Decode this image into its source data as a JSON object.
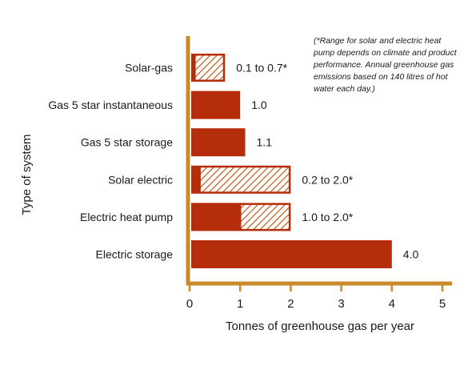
{
  "chart_data": {
    "type": "bar",
    "orientation": "horizontal",
    "xlabel": "Tonnes of greenhouse gas per year",
    "ylabel": "Type of system",
    "xlim": [
      0,
      5
    ],
    "xticks": [
      "0",
      "1",
      "2",
      "3",
      "4",
      "5"
    ],
    "grid": false,
    "categories": [
      "Solar-gas",
      "Gas 5 star instantaneous",
      "Gas 5 star storage",
      "Solar electric",
      "Electric heat pump",
      "Electric storage"
    ],
    "series": [
      {
        "values": [
          0.1,
          1.0,
          1.1,
          0.2,
          1.0,
          4.0
        ]
      },
      {
        "values": [
          0.7,
          null,
          null,
          2.0,
          2.0,
          null
        ]
      }
    ],
    "data_labels": [
      "0.1 to 0.7*",
      "1.0",
      "1.1",
      "0.2 to 2.0*",
      "1.0 to 2.0*",
      "4.0"
    ],
    "annotation": "(*Range for solar and electric heat pump depends on climate and product performance. Annual greenhouse gas emissions based on 140 litres of hot water each day.)",
    "colors": {
      "bar": "#B52D0B",
      "hatch": "#C25A1A",
      "axis": "#CB8A29"
    }
  }
}
